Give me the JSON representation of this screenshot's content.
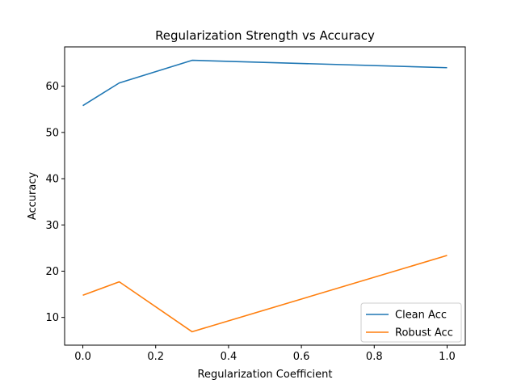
{
  "chart_data": {
    "type": "line",
    "title": "Regularization Strength vs Accuracy",
    "xlabel": "Regularization Coefficient",
    "ylabel": "Accuracy",
    "x": [
      0.0,
      0.1,
      0.3,
      1.0
    ],
    "series": [
      {
        "name": "Clean Acc",
        "color": "#1f77b4",
        "values": [
          55.8,
          60.7,
          65.6,
          64.0
        ]
      },
      {
        "name": "Robust Acc",
        "color": "#ff7f0e",
        "values": [
          14.8,
          17.7,
          6.9,
          23.4
        ]
      }
    ],
    "xlim": [
      -0.05,
      1.05
    ],
    "ylim": [
      4.0,
      68.5
    ],
    "xticks": [
      0.0,
      0.2,
      0.4,
      0.6,
      0.8,
      1.0
    ],
    "xtick_labels": [
      "0.0",
      "0.2",
      "0.4",
      "0.6",
      "0.8",
      "1.0"
    ],
    "yticks": [
      10,
      20,
      30,
      40,
      50,
      60
    ],
    "ytick_labels": [
      "10",
      "20",
      "30",
      "40",
      "50",
      "60"
    ],
    "grid": false,
    "legend_position": "bottom-right"
  }
}
